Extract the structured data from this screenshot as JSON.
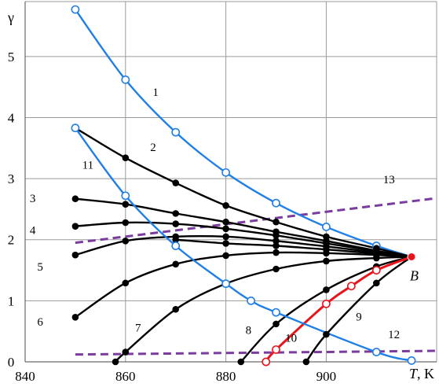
{
  "chart_data": {
    "type": "line",
    "title": "",
    "ylabel": "γ",
    "xlabel_italic": "T",
    "xlabel_unit": ", K",
    "xlim": [
      840,
      922
    ],
    "ylim": [
      0,
      5.9
    ],
    "grid": true,
    "x_ticks": [
      {
        "value": 840,
        "label": "840"
      },
      {
        "value": 860,
        "label": "860"
      },
      {
        "value": 880,
        "label": "880"
      },
      {
        "value": 900,
        "label": "900"
      }
    ],
    "y_ticks": [
      {
        "value": 0,
        "label": "0"
      },
      {
        "value": 1,
        "label": "1"
      },
      {
        "value": 2,
        "label": "2"
      },
      {
        "value": 3,
        "label": "3"
      },
      {
        "value": 4,
        "label": "4"
      },
      {
        "value": 5,
        "label": "5"
      }
    ],
    "point_label": {
      "text": "B",
      "x": 917,
      "y": 1.72
    },
    "colors": {
      "blue": "#1f7fe6",
      "black": "#000000",
      "red": "#e8141c",
      "purple": "#7a3c9e"
    },
    "series": [
      {
        "label": "1",
        "color": "blue",
        "marker": "open",
        "points": [
          [
            850,
            5.77
          ],
          [
            860,
            4.62
          ],
          [
            870,
            3.76
          ],
          [
            880,
            3.1
          ],
          [
            890,
            2.6
          ],
          [
            900,
            2.21
          ],
          [
            910,
            1.9
          ],
          [
            917,
            1.72
          ]
        ]
      },
      {
        "label": "2",
        "color": "black",
        "marker": "filled",
        "points": [
          [
            850,
            3.83
          ],
          [
            860,
            3.34
          ],
          [
            870,
            2.93
          ],
          [
            880,
            2.56
          ],
          [
            890,
            2.29
          ],
          [
            900,
            2.05
          ],
          [
            910,
            1.86
          ],
          [
            917,
            1.72
          ]
        ]
      },
      {
        "label": "3",
        "color": "black",
        "marker": "filled",
        "points": [
          [
            850,
            2.67
          ],
          [
            860,
            2.58
          ],
          [
            870,
            2.43
          ],
          [
            880,
            2.29
          ],
          [
            890,
            2.13
          ],
          [
            900,
            1.98
          ],
          [
            910,
            1.82
          ],
          [
            917,
            1.72
          ]
        ]
      },
      {
        "label": "4",
        "color": "black",
        "marker": "filled",
        "points": [
          [
            850,
            2.22
          ],
          [
            860,
            2.28
          ],
          [
            870,
            2.26
          ],
          [
            880,
            2.18
          ],
          [
            890,
            2.07
          ],
          [
            900,
            1.94
          ],
          [
            910,
            1.81
          ],
          [
            917,
            1.72
          ]
        ]
      },
      {
        "label": "5",
        "color": "black",
        "marker": "filled",
        "points": [
          [
            850,
            1.75
          ],
          [
            860,
            1.98
          ],
          [
            870,
            2.05
          ],
          [
            880,
            2.05
          ],
          [
            890,
            1.98
          ],
          [
            900,
            1.89
          ],
          [
            910,
            1.79
          ],
          [
            917,
            1.72
          ]
        ]
      },
      {
        "label": "",
        "color": "black",
        "marker": "filled",
        "points": [
          [
            870,
            2.0
          ],
          [
            880,
            1.94
          ],
          [
            890,
            1.9
          ],
          [
            900,
            1.84
          ],
          [
            910,
            1.77
          ],
          [
            917,
            1.72
          ]
        ]
      },
      {
        "label": "6",
        "color": "black",
        "marker": "filled",
        "points": [
          [
            850,
            0.73
          ],
          [
            860,
            1.29
          ],
          [
            870,
            1.6
          ],
          [
            880,
            1.74
          ],
          [
            890,
            1.79
          ],
          [
            900,
            1.78
          ],
          [
            910,
            1.75
          ],
          [
            917,
            1.72
          ]
        ]
      },
      {
        "label": "7",
        "color": "black",
        "marker": "filled",
        "points": [
          [
            858,
            0.0
          ],
          [
            860,
            0.16
          ],
          [
            870,
            0.86
          ],
          [
            880,
            1.28
          ],
          [
            890,
            1.52
          ],
          [
            900,
            1.65
          ],
          [
            910,
            1.7
          ],
          [
            917,
            1.72
          ]
        ]
      },
      {
        "label": "8",
        "color": "black",
        "marker": "filled",
        "points": [
          [
            883,
            0.0
          ],
          [
            890,
            0.62
          ],
          [
            900,
            1.18
          ],
          [
            910,
            1.56
          ],
          [
            917,
            1.72
          ]
        ]
      },
      {
        "label": "9",
        "color": "black",
        "marker": "filled",
        "points": [
          [
            896,
            0.0
          ],
          [
            900,
            0.45
          ],
          [
            910,
            1.29
          ],
          [
            917,
            1.72
          ]
        ]
      },
      {
        "label": "10",
        "color": "red",
        "marker": "open",
        "points": [
          [
            888,
            0.0
          ],
          [
            890,
            0.2
          ],
          [
            900,
            0.95
          ],
          [
            905,
            1.24
          ],
          [
            910,
            1.5
          ],
          [
            917,
            1.72
          ]
        ]
      },
      {
        "label": "11",
        "color": "blue",
        "marker": "open",
        "points": [
          [
            850,
            3.83
          ],
          [
            860,
            2.72
          ],
          [
            870,
            1.9
          ],
          [
            880,
            1.28
          ],
          [
            885,
            1.0
          ],
          [
            890,
            0.81
          ],
          [
            910,
            0.16
          ],
          [
            917,
            0.02
          ]
        ]
      }
    ],
    "dashed_lines": [
      {
        "label": "13",
        "color": "purple",
        "points": [
          [
            850,
            1.95
          ],
          [
            922,
            2.68
          ]
        ]
      },
      {
        "label": "12",
        "color": "purple",
        "points": [
          [
            850,
            0.12
          ],
          [
            922,
            0.18
          ]
        ]
      }
    ],
    "labels": [
      {
        "text": "1",
        "x": 866,
        "y": 4.42
      },
      {
        "text": "2",
        "x": 865.5,
        "y": 3.52
      },
      {
        "text": "3",
        "x": 841.5,
        "y": 2.68
      },
      {
        "text": "4",
        "x": 841.5,
        "y": 2.16
      },
      {
        "text": "5",
        "x": 843,
        "y": 1.56
      },
      {
        "text": "6",
        "x": 843,
        "y": 0.66
      },
      {
        "text": "7",
        "x": 862.5,
        "y": 0.56
      },
      {
        "text": "8",
        "x": 884.5,
        "y": 0.52
      },
      {
        "text": "9",
        "x": 906.5,
        "y": 0.74
      },
      {
        "text": "10",
        "x": 893,
        "y": 0.39
      },
      {
        "text": "11",
        "x": 852.5,
        "y": 3.23
      },
      {
        "text": "12",
        "x": 913.5,
        "y": 0.45
      },
      {
        "text": "13",
        "x": 912.5,
        "y": 2.99
      }
    ]
  }
}
